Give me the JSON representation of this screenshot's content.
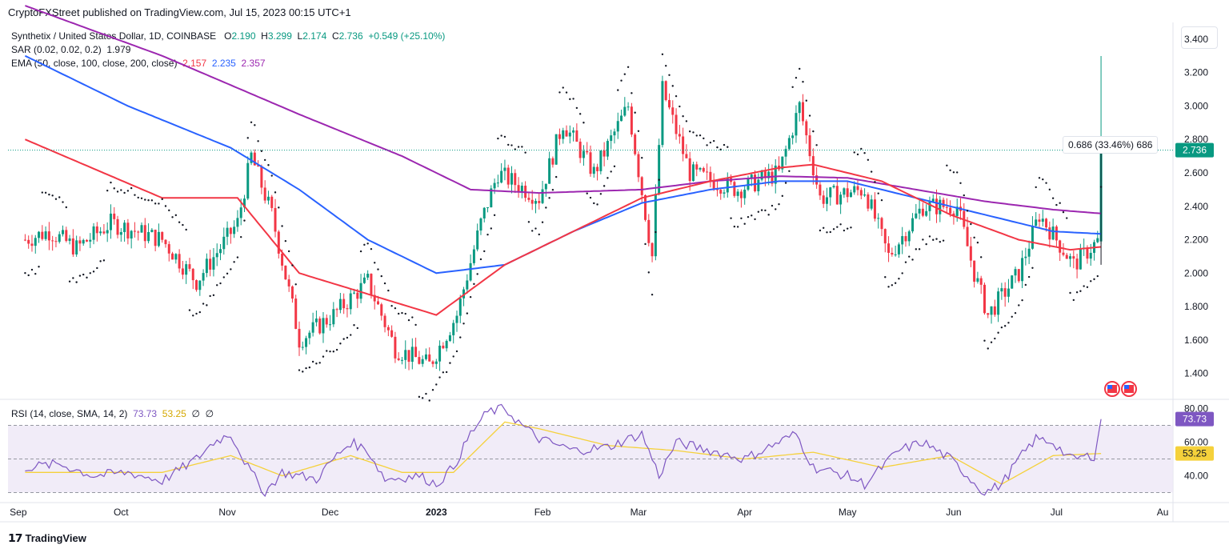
{
  "publisher_line": "CryptoFXStreet published on TradingView.com, Jul 15, 2023 00:15 UTC+1",
  "legend": {
    "symbol": "Synthetix / United States Dollar, 1D, COINBASE",
    "ohlc": {
      "o_label": "O",
      "o": "2.190",
      "h_label": "H",
      "h": "3.299",
      "l_label": "L",
      "l": "2.174",
      "c_label": "C",
      "c": "2.736",
      "change": "+0.549 (+25.10%)"
    },
    "sar_label": "SAR (0.02, 0.02, 0.2)",
    "sar_value": "1.979",
    "ema_label": "EMA (50, close, 100, close, 200, close)",
    "ema50": "2.157",
    "ema100": "2.235",
    "ema200": "2.357"
  },
  "rsi_legend": {
    "label": "RSI (14, close, SMA, 14, 2)",
    "rsi": "73.73",
    "sma": "53.25",
    "extra1": "∅",
    "extra2": "∅"
  },
  "measure_label": "0.686 (33.46%) 686",
  "colors": {
    "up": "#089981",
    "down": "#f23645",
    "ema50": "#f23645",
    "ema100": "#2962ff",
    "ema200": "#9c27b0",
    "sar": "#131722",
    "rsi": "#7e57c2",
    "rsi_sma": "#f5d13b",
    "rsi_band": "#ede7f6"
  },
  "footer": {
    "brand": "TradingView",
    "logo_icon": "tradingview-logo-icon"
  },
  "flag_icons": [
    "us-flag-icon",
    "us-flag-icon"
  ],
  "chart_data": {
    "type": "candlestick",
    "price_axis": {
      "ylim": [
        1.25,
        3.5
      ],
      "ticks": [
        "3.400",
        "3.200",
        "3.000",
        "2.800",
        "2.600",
        "2.400",
        "2.200",
        "2.000",
        "1.800",
        "1.600",
        "1.400"
      ],
      "last_price": "2.736"
    },
    "rsi_axis": {
      "ylim": [
        25,
        85
      ],
      "ticks": [
        "80.00",
        "60.00",
        "40.00"
      ],
      "upper_band": 70,
      "lower_band": 30,
      "mid": 50,
      "rsi_last": "73.73",
      "sma_last": "53.25"
    },
    "x_axis_labels": [
      "Sep",
      "Oct",
      "Nov",
      "Dec",
      "2023",
      "Feb",
      "Mar",
      "Apr",
      "May",
      "Jun",
      "Jul",
      "Au"
    ],
    "x_label_days": [
      -2,
      28,
      59,
      89,
      120,
      151,
      179,
      210,
      240,
      271,
      301,
      332
    ],
    "price_keypoints": [
      [
        0,
        2.2
      ],
      [
        7,
        2.25
      ],
      [
        15,
        2.15
      ],
      [
        25,
        2.3
      ],
      [
        40,
        2.2
      ],
      [
        50,
        1.95
      ],
      [
        62,
        2.3
      ],
      [
        66,
        2.7
      ],
      [
        72,
        2.35
      ],
      [
        78,
        1.8
      ],
      [
        80,
        1.6
      ],
      [
        90,
        1.75
      ],
      [
        100,
        1.95
      ],
      [
        108,
        1.55
      ],
      [
        118,
        1.45
      ],
      [
        126,
        1.75
      ],
      [
        133,
        2.3
      ],
      [
        138,
        2.6
      ],
      [
        150,
        2.45
      ],
      [
        157,
        2.9
      ],
      [
        166,
        2.6
      ],
      [
        176,
        3.0
      ],
      [
        183,
        2.1
      ],
      [
        186,
        3.1
      ],
      [
        194,
        2.6
      ],
      [
        208,
        2.5
      ],
      [
        220,
        2.6
      ],
      [
        226,
        3.0
      ],
      [
        232,
        2.45
      ],
      [
        245,
        2.5
      ],
      [
        252,
        2.1
      ],
      [
        262,
        2.4
      ],
      [
        272,
        2.4
      ],
      [
        277,
        2.0
      ],
      [
        281,
        1.75
      ],
      [
        290,
        2.0
      ],
      [
        296,
        2.35
      ],
      [
        306,
        2.05
      ],
      [
        313,
        2.19
      ],
      [
        314,
        2.736
      ]
    ],
    "ema50_keypoints": [
      [
        0,
        2.8
      ],
      [
        40,
        2.45
      ],
      [
        62,
        2.45
      ],
      [
        80,
        2.0
      ],
      [
        120,
        1.75
      ],
      [
        140,
        2.05
      ],
      [
        160,
        2.25
      ],
      [
        180,
        2.45
      ],
      [
        200,
        2.55
      ],
      [
        220,
        2.63
      ],
      [
        230,
        2.65
      ],
      [
        250,
        2.55
      ],
      [
        270,
        2.35
      ],
      [
        290,
        2.2
      ],
      [
        305,
        2.14
      ],
      [
        314,
        2.157
      ]
    ],
    "ema100_keypoints": [
      [
        0,
        3.3
      ],
      [
        30,
        3.0
      ],
      [
        60,
        2.75
      ],
      [
        80,
        2.5
      ],
      [
        100,
        2.2
      ],
      [
        120,
        2.0
      ],
      [
        140,
        2.05
      ],
      [
        160,
        2.25
      ],
      [
        180,
        2.42
      ],
      [
        200,
        2.5
      ],
      [
        220,
        2.55
      ],
      [
        240,
        2.55
      ],
      [
        260,
        2.45
      ],
      [
        280,
        2.35
      ],
      [
        300,
        2.25
      ],
      [
        314,
        2.235
      ]
    ],
    "ema200_keypoints": [
      [
        0,
        3.6
      ],
      [
        40,
        3.3
      ],
      [
        80,
        2.95
      ],
      [
        110,
        2.7
      ],
      [
        130,
        2.5
      ],
      [
        150,
        2.48
      ],
      [
        180,
        2.5
      ],
      [
        200,
        2.55
      ],
      [
        220,
        2.58
      ],
      [
        240,
        2.57
      ],
      [
        260,
        2.5
      ],
      [
        280,
        2.43
      ],
      [
        300,
        2.38
      ],
      [
        314,
        2.357
      ]
    ],
    "rsi_keypoints": [
      [
        0,
        45
      ],
      [
        10,
        47
      ],
      [
        20,
        40
      ],
      [
        30,
        42
      ],
      [
        40,
        37
      ],
      [
        50,
        50
      ],
      [
        55,
        60
      ],
      [
        60,
        65
      ],
      [
        65,
        45
      ],
      [
        70,
        30
      ],
      [
        75,
        42
      ],
      [
        85,
        38
      ],
      [
        90,
        50
      ],
      [
        95,
        60
      ],
      [
        100,
        55
      ],
      [
        105,
        38
      ],
      [
        115,
        40
      ],
      [
        120,
        35
      ],
      [
        125,
        45
      ],
      [
        130,
        65
      ],
      [
        135,
        78
      ],
      [
        140,
        80
      ],
      [
        145,
        70
      ],
      [
        150,
        62
      ],
      [
        160,
        55
      ],
      [
        170,
        57
      ],
      [
        180,
        65
      ],
      [
        185,
        40
      ],
      [
        190,
        60
      ],
      [
        200,
        55
      ],
      [
        210,
        50
      ],
      [
        220,
        60
      ],
      [
        225,
        65
      ],
      [
        230,
        45
      ],
      [
        240,
        40
      ],
      [
        245,
        35
      ],
      [
        255,
        55
      ],
      [
        262,
        60
      ],
      [
        270,
        50
      ],
      [
        275,
        40
      ],
      [
        280,
        30
      ],
      [
        285,
        35
      ],
      [
        290,
        50
      ],
      [
        295,
        62
      ],
      [
        300,
        60
      ],
      [
        305,
        50
      ],
      [
        312,
        52
      ],
      [
        314,
        73.73
      ]
    ],
    "rsi_sma_keypoints": [
      [
        0,
        42
      ],
      [
        20,
        42
      ],
      [
        40,
        42
      ],
      [
        60,
        52
      ],
      [
        75,
        40
      ],
      [
        95,
        52
      ],
      [
        110,
        42
      ],
      [
        125,
        42
      ],
      [
        140,
        72
      ],
      [
        150,
        68
      ],
      [
        170,
        58
      ],
      [
        190,
        55
      ],
      [
        210,
        50
      ],
      [
        230,
        54
      ],
      [
        250,
        45
      ],
      [
        270,
        52
      ],
      [
        285,
        35
      ],
      [
        300,
        52
      ],
      [
        314,
        53.25
      ]
    ]
  }
}
